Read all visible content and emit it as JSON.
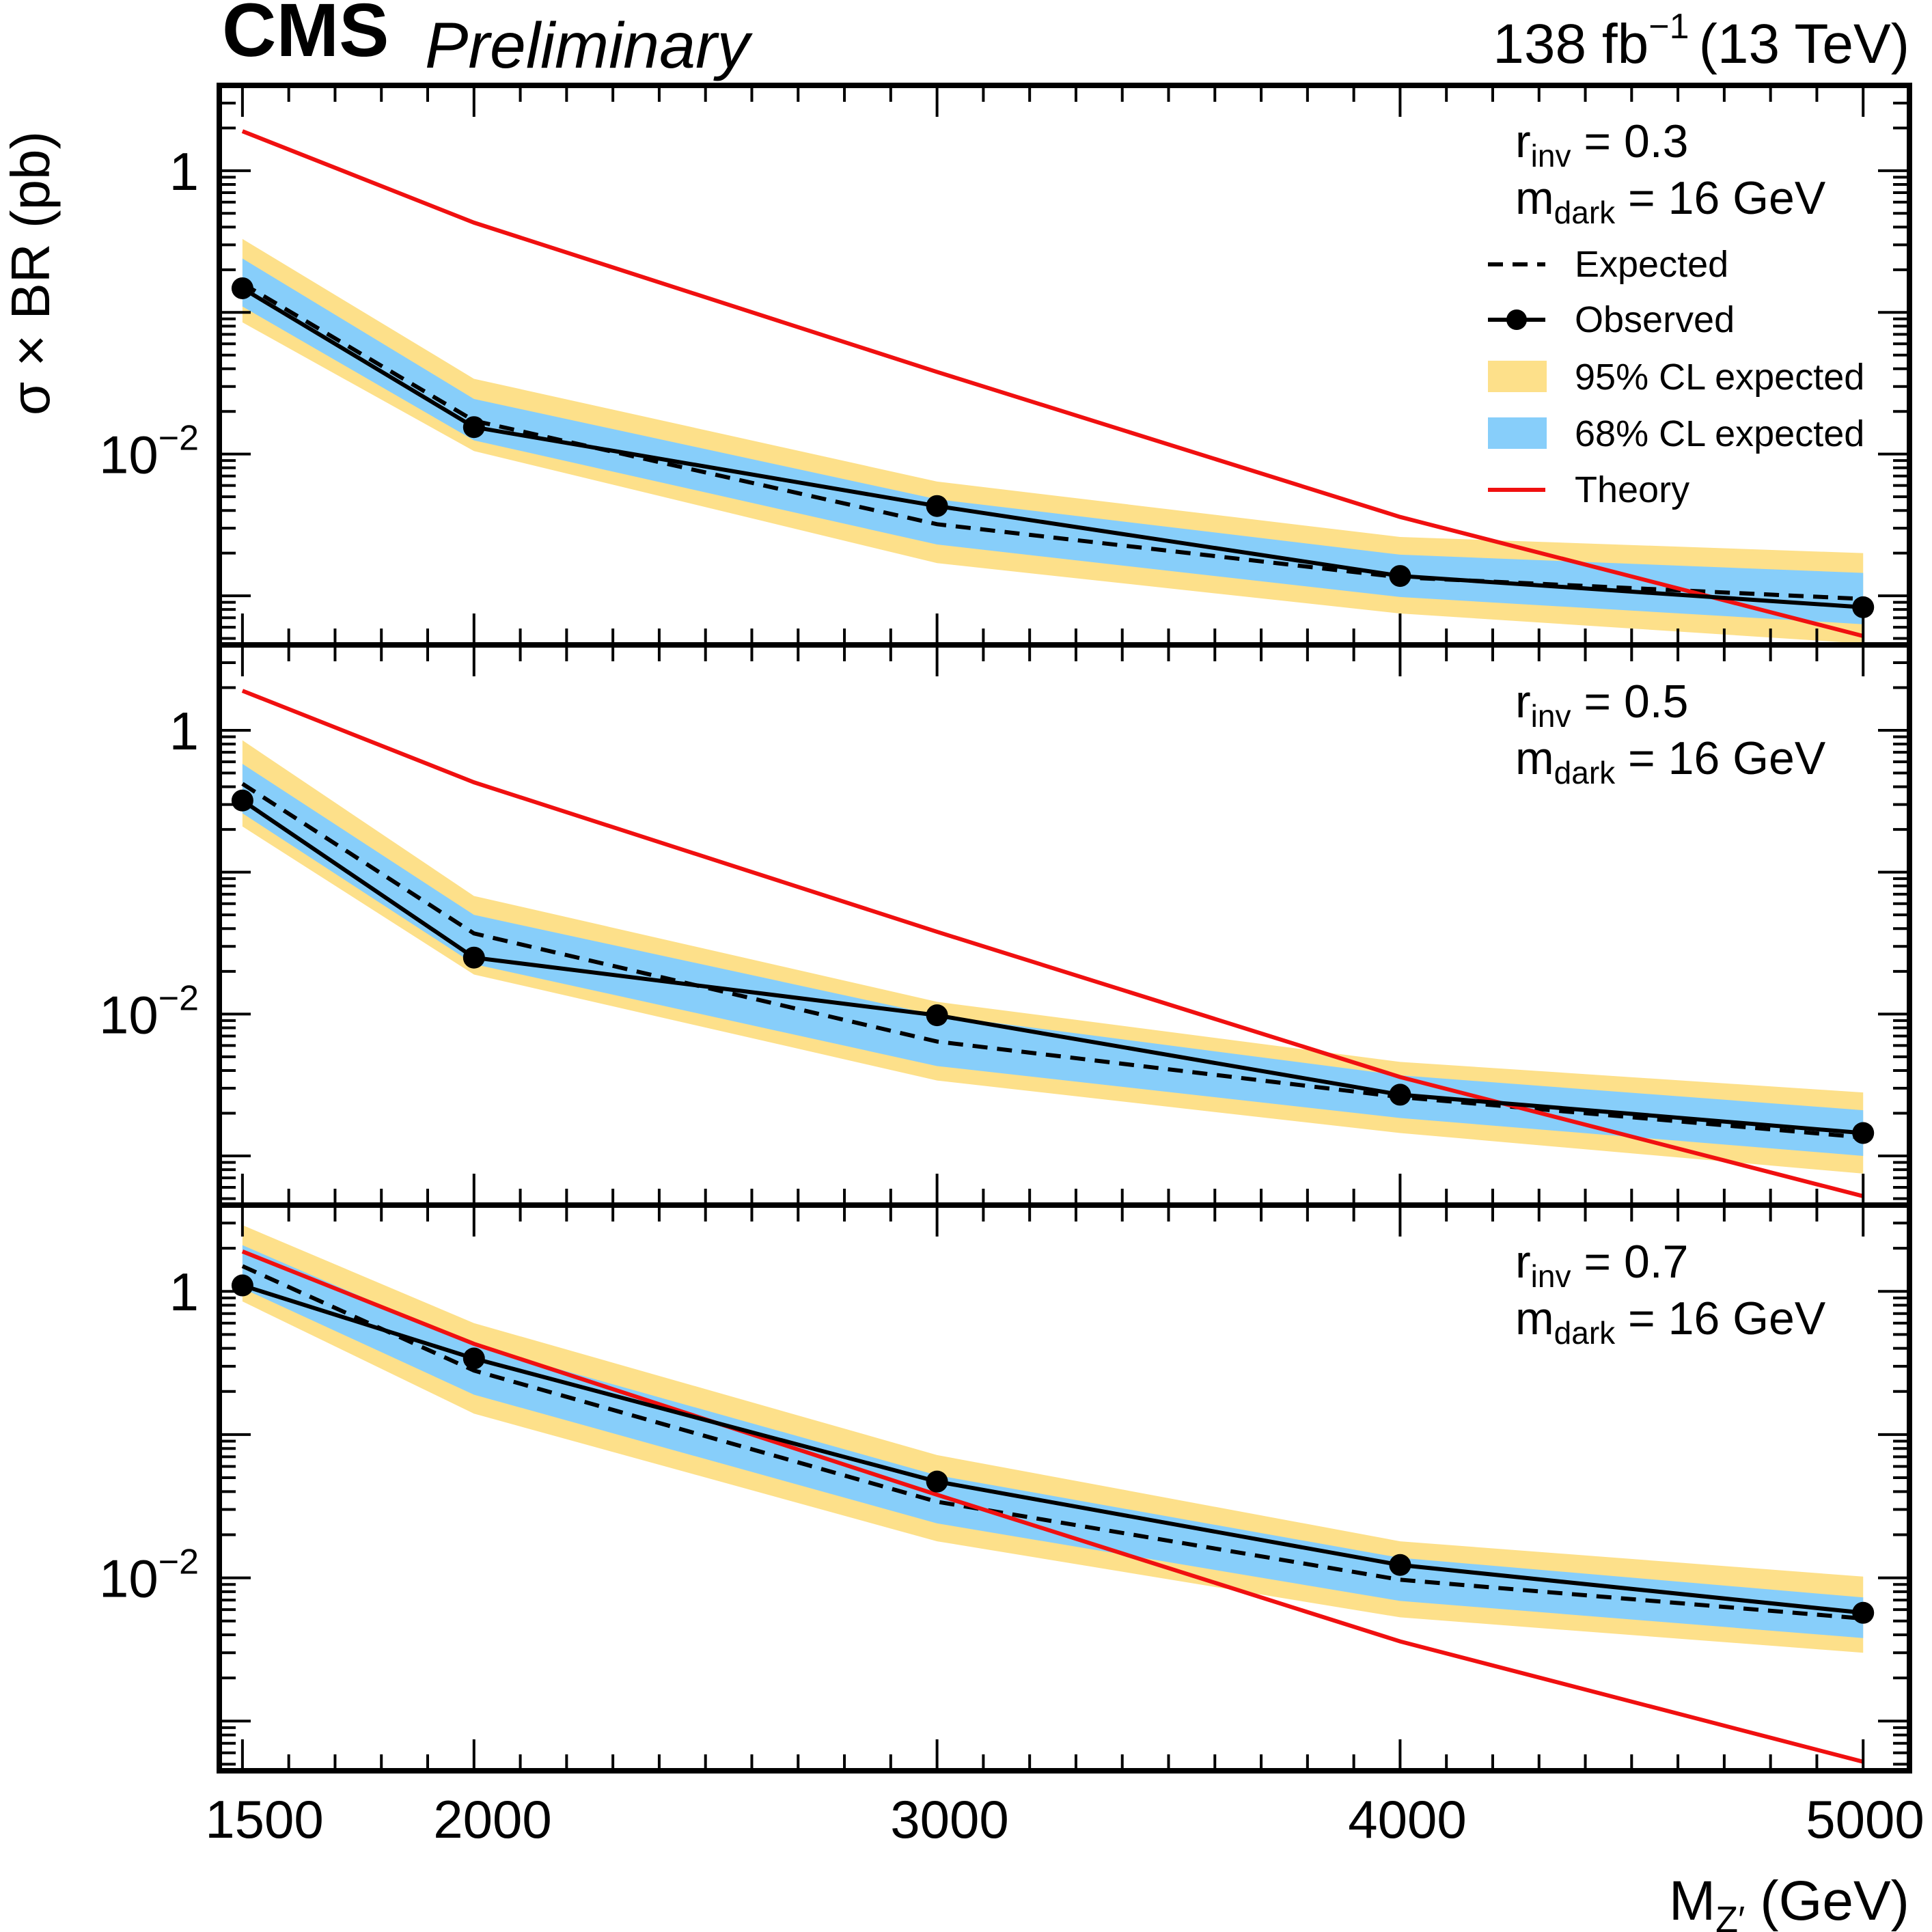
{
  "header": {
    "cms": "CMS",
    "preliminary": "Preliminary",
    "lumi_value": "138 fb",
    "lumi_exponent": "−1",
    "energy": "(13 TeV)"
  },
  "axis": {
    "y_label": "σ × BR (pb)",
    "x_label_main": "M",
    "x_label_sub": "Z′",
    "x_label_unit": "(GeV)"
  },
  "legend": {
    "expected": "Expected",
    "observed": "Observed",
    "band95": "95% CL expected",
    "band68": "68% CL expected",
    "theory": "Theory"
  },
  "colors": {
    "band95": "#fde08a",
    "band68": "#87cefa",
    "theory": "#f01010",
    "line": "#000000"
  },
  "chart_data": {
    "type": "line",
    "xlabel": "M_Z′ (GeV)",
    "ylabel": "σ × BR (pb)",
    "x_scale": "linear",
    "y_scale": "log",
    "xlim": [
      1450,
      5100
    ],
    "x_ticks": [
      1500,
      2000,
      3000,
      4000,
      5000
    ],
    "x_tick_labels": [
      "1500",
      "2000",
      "3000",
      "4000",
      "5000"
    ],
    "panels": [
      {
        "id": "rinv03",
        "rinv_label": "r",
        "rinv_sub": "inv",
        "rinv_value": " = 0.3",
        "mdark_label": "m",
        "mdark_sub": "dark",
        "mdark_value": " = 16 GeV",
        "ylim": [
          0.00045,
          4
        ],
        "y_ticks": [
          {
            "value": 1,
            "label": "1"
          },
          {
            "value": 0.01,
            "label_base": "10",
            "label_exp": "−2"
          }
        ],
        "x": [
          1500,
          2000,
          3000,
          4000,
          5000
        ],
        "observed": [
          0.148,
          0.0155,
          0.0043,
          0.00138,
          0.00083
        ],
        "expected": [
          0.16,
          0.0172,
          0.0032,
          0.00135,
          0.00095
        ],
        "band68_low": [
          0.11,
          0.0125,
          0.0023,
          0.00098,
          0.00063
        ],
        "band68_high": [
          0.24,
          0.0245,
          0.0048,
          0.00195,
          0.00145
        ],
        "band95_low": [
          0.085,
          0.0105,
          0.0017,
          0.00075,
          0.00046
        ],
        "band95_high": [
          0.33,
          0.034,
          0.0064,
          0.0026,
          0.002
        ],
        "theory": [
          1.9,
          0.43,
          0.038,
          0.0036,
          0.00052
        ]
      },
      {
        "id": "rinv05",
        "rinv_label": "r",
        "rinv_sub": "inv",
        "rinv_value": " = 0.5",
        "mdark_label": "m",
        "mdark_sub": "dark",
        "mdark_value": " = 16 GeV",
        "ylim": [
          0.00045,
          4
        ],
        "y_ticks": [
          {
            "value": 1,
            "label": "1"
          },
          {
            "value": 0.01,
            "label_base": "10",
            "label_exp": "−2"
          }
        ],
        "x": [
          1500,
          2000,
          3000,
          4000,
          5000
        ],
        "observed": [
          0.32,
          0.025,
          0.0098,
          0.0027,
          0.00145
        ],
        "expected": [
          0.42,
          0.037,
          0.0064,
          0.0026,
          0.00135
        ],
        "band68_low": [
          0.26,
          0.0225,
          0.0043,
          0.00185,
          0.001
        ],
        "band68_high": [
          0.58,
          0.05,
          0.0098,
          0.0037,
          0.0021
        ],
        "band95_low": [
          0.21,
          0.019,
          0.0034,
          0.00145,
          0.00075
        ],
        "band95_high": [
          0.85,
          0.068,
          0.0122,
          0.0046,
          0.0028
        ],
        "theory": [
          1.9,
          0.43,
          0.038,
          0.0036,
          0.00052
        ]
      },
      {
        "id": "rinv07",
        "rinv_label": "r",
        "rinv_sub": "inv",
        "rinv_value": " = 0.7",
        "mdark_label": "m",
        "mdark_sub": "dark",
        "mdark_value": " = 16 GeV",
        "ylim": [
          0.00045,
          4
        ],
        "y_ticks": [
          {
            "value": 1,
            "label": "1"
          },
          {
            "value": 0.01,
            "label_base": "10",
            "label_exp": "−2"
          }
        ],
        "x": [
          1500,
          2000,
          3000,
          4000,
          5000
        ],
        "observed": [
          1.1,
          0.34,
          0.047,
          0.0123,
          0.0057
        ],
        "expected": [
          1.5,
          0.28,
          0.034,
          0.0097,
          0.0052
        ],
        "band68_low": [
          1.05,
          0.19,
          0.024,
          0.0069,
          0.0038
        ],
        "band68_high": [
          2.1,
          0.42,
          0.052,
          0.0138,
          0.0073
        ],
        "band95_low": [
          0.85,
          0.14,
          0.018,
          0.0053,
          0.003
        ],
        "band95_high": [
          2.9,
          0.6,
          0.072,
          0.018,
          0.0102
        ],
        "theory": [
          1.9,
          0.43,
          0.038,
          0.0036,
          0.00052
        ]
      }
    ]
  }
}
